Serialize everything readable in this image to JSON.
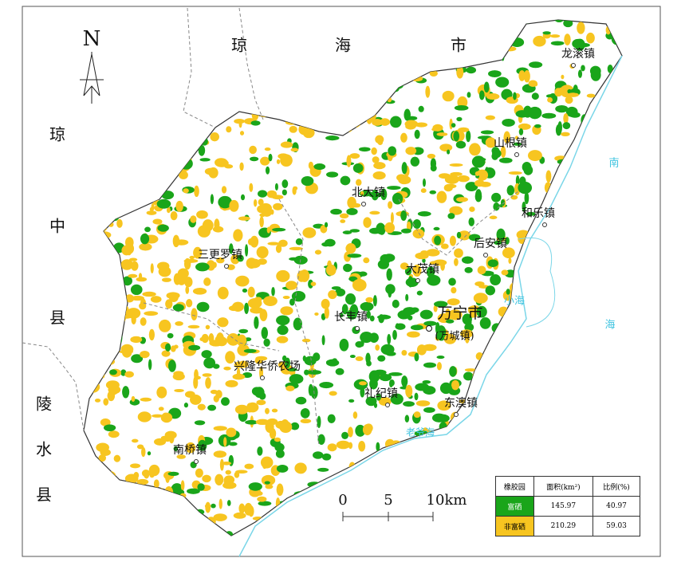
{
  "map": {
    "north": "N",
    "neighbors": {
      "qionghai": [
        "琼",
        "海",
        "市"
      ],
      "qiongzhong": [
        "琼",
        "中",
        "县"
      ],
      "lingshui": [
        "陵",
        "水",
        "县"
      ]
    },
    "waters": {
      "nanhai": [
        "南",
        "海"
      ],
      "xiaohai": "小海",
      "laoyehai": "老爷海"
    },
    "towns": [
      "龙滚镇",
      "山根镇",
      "北大镇",
      "和乐镇",
      "后安镇",
      "三更罗镇",
      "大茂镇",
      "长丰镇",
      "兴隆华侨农场",
      "礼纪镇",
      "东澳镇",
      "南桥镇"
    ],
    "city": {
      "name": "万宁市",
      "seat": "(万城镇)"
    },
    "scale": [
      "0",
      "5",
      "10km"
    ]
  },
  "table": {
    "header": [
      "橡胶园",
      "面积(km²)",
      "比例(%)"
    ],
    "rows": [
      [
        "富硒",
        "145.97",
        "40.97"
      ],
      [
        "非富硒",
        "210.29",
        "59.03"
      ]
    ]
  }
}
